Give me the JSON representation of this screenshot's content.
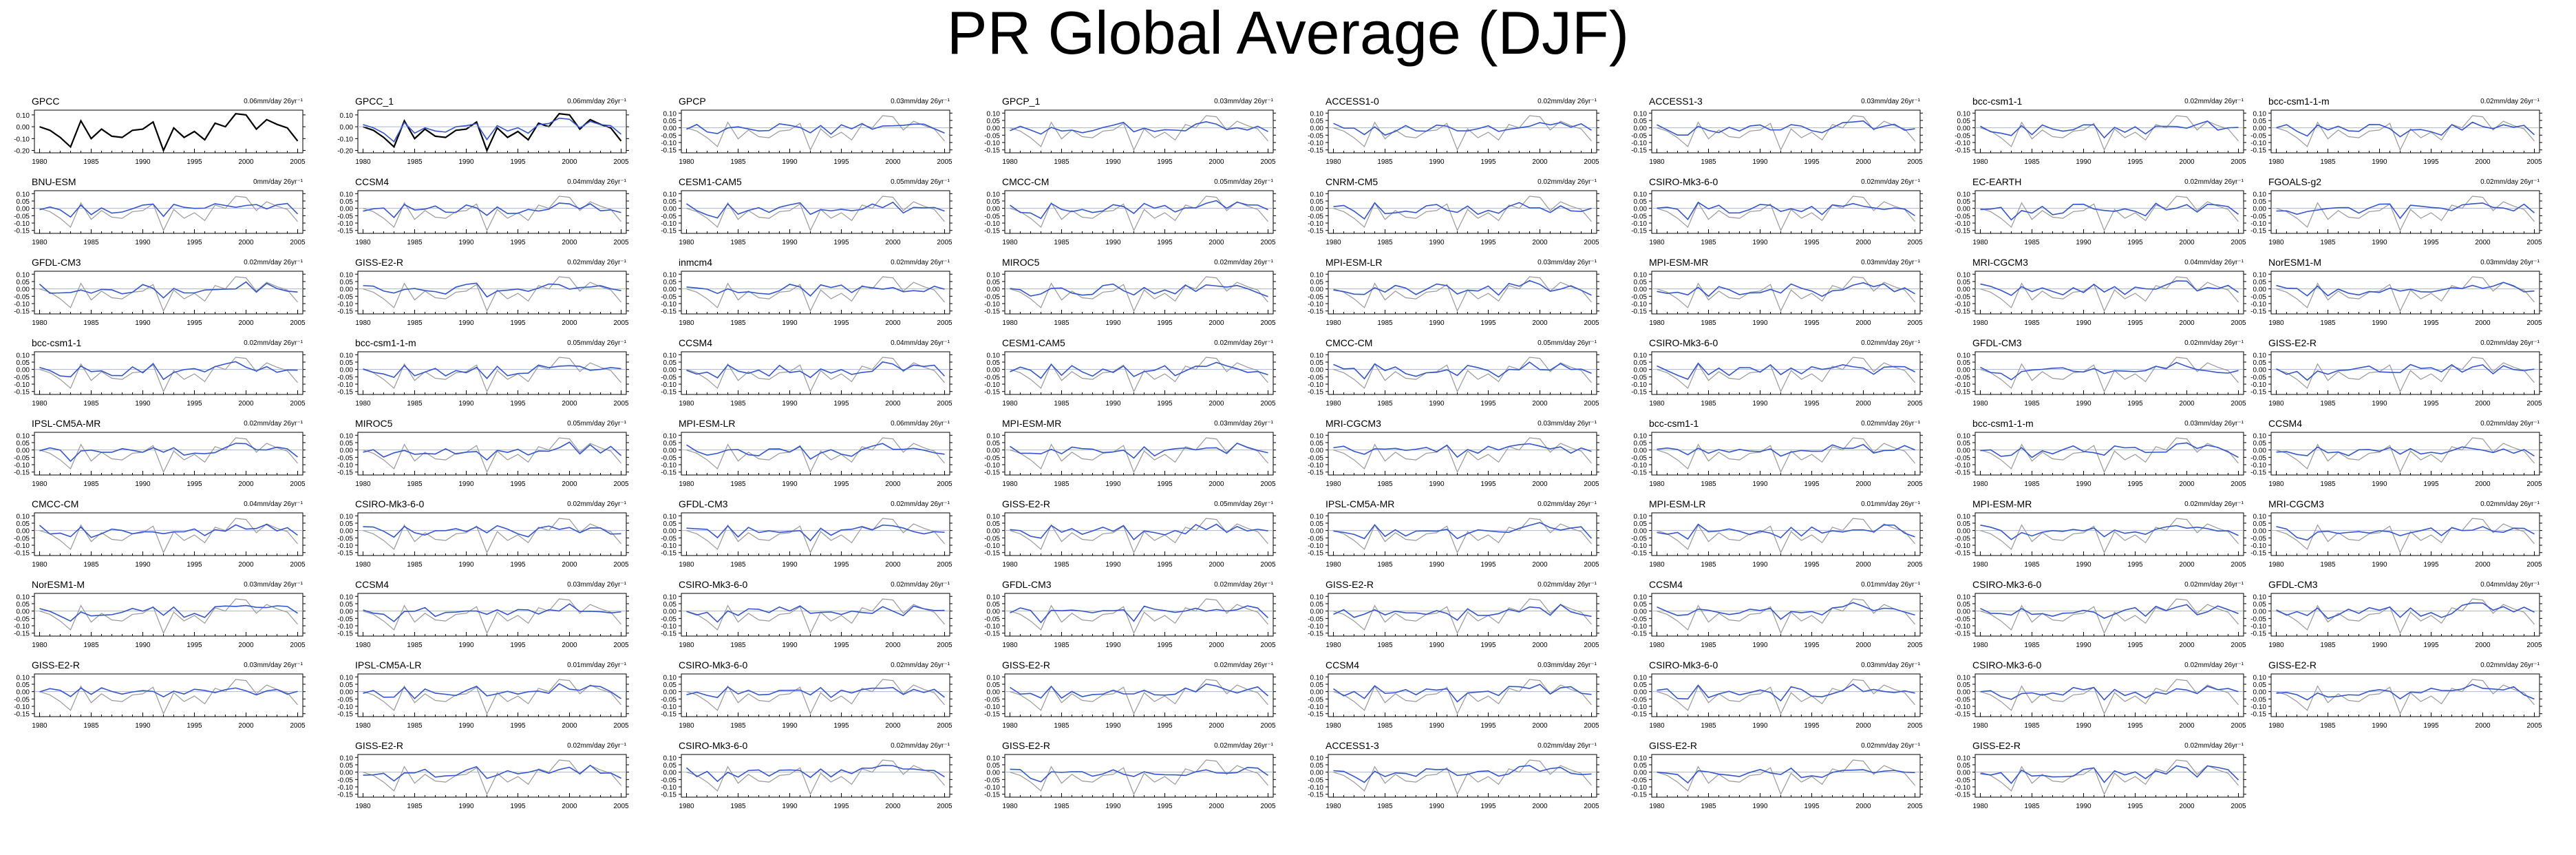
{
  "title": "PR Global Average (DJF)",
  "colors": {
    "obs": "#000000",
    "model": "#999999",
    "trend": "#3355cc",
    "zero": "#aab4d6"
  },
  "chart_data": [
    {
      "type": "line",
      "title": "GPCC",
      "trend": "0.06mm/day 26yr⁻¹",
      "obs": true,
      "seed": 1
    },
    {
      "type": "line",
      "title": "GPCC_1",
      "trend": "0.06mm/day 26yr⁻¹",
      "obs": true,
      "seed": 1
    },
    {
      "type": "line",
      "title": "GPCP",
      "trend": "0.03mm/day 26yr⁻¹",
      "seed": 3
    },
    {
      "type": "line",
      "title": "GPCP_1",
      "trend": "0.03mm/day 26yr⁻¹",
      "seed": 4
    },
    {
      "type": "line",
      "title": "ACCESS1-0",
      "trend": "0.02mm/day 26yr⁻¹",
      "seed": 5
    },
    {
      "type": "line",
      "title": "ACCESS1-3",
      "trend": "0.03mm/day 26yr⁻¹",
      "seed": 6
    },
    {
      "type": "line",
      "title": "bcc-csm1-1",
      "trend": "0.02mm/day 26yr⁻¹",
      "seed": 7
    },
    {
      "type": "line",
      "title": "bcc-csm1-1-m",
      "trend": "0.02mm/day 26yr⁻¹",
      "seed": 8
    },
    {
      "type": "line",
      "title": "BNU-ESM",
      "trend": "0mm/day 26yr⁻¹",
      "seed": 9
    },
    {
      "type": "line",
      "title": "CCSM4",
      "trend": "0.04mm/day 26yr⁻¹",
      "seed": 10
    },
    {
      "type": "line",
      "title": "CESM1-CAM5",
      "trend": "0.05mm/day 26yr⁻¹",
      "seed": 11
    },
    {
      "type": "line",
      "title": "CMCC-CM",
      "trend": "0.05mm/day 26yr⁻¹",
      "seed": 12
    },
    {
      "type": "line",
      "title": "CNRM-CM5",
      "trend": "0.02mm/day 26yr⁻¹",
      "seed": 13
    },
    {
      "type": "line",
      "title": "CSIRO-Mk3-6-0",
      "trend": "0.02mm/day 26yr⁻¹",
      "seed": 14
    },
    {
      "type": "line",
      "title": "EC-EARTH",
      "trend": "0.02mm/day 26yr⁻¹",
      "seed": 15
    },
    {
      "type": "line",
      "title": "FGOALS-g2",
      "trend": "0.02mm/day 26yr⁻¹",
      "seed": 16
    },
    {
      "type": "line",
      "title": "GFDL-CM3",
      "trend": "0.02mm/day 26yr⁻¹",
      "seed": 17
    },
    {
      "type": "line",
      "title": "GISS-E2-R",
      "trend": "0.02mm/day 26yr⁻¹",
      "seed": 18
    },
    {
      "type": "line",
      "title": "inmcm4",
      "trend": "0.02mm/day 26yr⁻¹",
      "seed": 19
    },
    {
      "type": "line",
      "title": "MIROC5",
      "trend": "0.02mm/day 26yr⁻¹",
      "seed": 20
    },
    {
      "type": "line",
      "title": "MPI-ESM-LR",
      "trend": "0.03mm/day 26yr⁻¹",
      "seed": 21
    },
    {
      "type": "line",
      "title": "MPI-ESM-MR",
      "trend": "0.03mm/day 26yr⁻¹",
      "seed": 22
    },
    {
      "type": "line",
      "title": "MRI-CGCM3",
      "trend": "0.04mm/day 26yr⁻¹",
      "seed": 23
    },
    {
      "type": "line",
      "title": "NorESM1-M",
      "trend": "0.03mm/day 26yr⁻¹",
      "seed": 24
    },
    {
      "type": "line",
      "title": "bcc-csm1-1",
      "trend": "0.02mm/day 26yr⁻¹",
      "seed": 25
    },
    {
      "type": "line",
      "title": "bcc-csm1-1-m",
      "trend": "0.05mm/day 26yr⁻¹",
      "seed": 26
    },
    {
      "type": "line",
      "title": "CCSM4",
      "trend": "0.04mm/day 26yr⁻¹",
      "seed": 27
    },
    {
      "type": "line",
      "title": "CESM1-CAM5",
      "trend": "0.02mm/day 26yr⁻¹",
      "seed": 28
    },
    {
      "type": "line",
      "title": "CMCC-CM",
      "trend": "0.05mm/day 26yr⁻¹",
      "seed": 29
    },
    {
      "type": "line",
      "title": "CSIRO-Mk3-6-0",
      "trend": "0.02mm/day 26yr⁻¹",
      "seed": 30
    },
    {
      "type": "line",
      "title": "GFDL-CM3",
      "trend": "0.02mm/day 26yr⁻¹",
      "seed": 31
    },
    {
      "type": "line",
      "title": "GISS-E2-R",
      "trend": "0.02mm/day 26yr⁻¹",
      "seed": 32
    },
    {
      "type": "line",
      "title": "IPSL-CM5A-MR",
      "trend": "0.02mm/day 26yr⁻¹",
      "seed": 33
    },
    {
      "type": "line",
      "title": "MIROC5",
      "trend": "0.05mm/day 26yr⁻¹",
      "seed": 34
    },
    {
      "type": "line",
      "title": "MPI-ESM-LR",
      "trend": "0.06mm/day 26yr⁻¹",
      "seed": 35
    },
    {
      "type": "line",
      "title": "MPI-ESM-MR",
      "trend": "0.03mm/day 26yr⁻¹",
      "seed": 36
    },
    {
      "type": "line",
      "title": "MRI-CGCM3",
      "trend": "0.03mm/day 26yr⁻¹",
      "seed": 37
    },
    {
      "type": "line",
      "title": "bcc-csm1-1",
      "trend": "0.02mm/day 26yr⁻¹",
      "seed": 38
    },
    {
      "type": "line",
      "title": "bcc-csm1-1-m",
      "trend": "0.03mm/day 26yr⁻¹",
      "seed": 39
    },
    {
      "type": "line",
      "title": "CCSM4",
      "trend": "0.02mm/day 26yr⁻¹",
      "seed": 40
    },
    {
      "type": "line",
      "title": "CMCC-CM",
      "trend": "0.04mm/day 26yr⁻¹",
      "seed": 41
    },
    {
      "type": "line",
      "title": "CSIRO-Mk3-6-0",
      "trend": "0.02mm/day 26yr⁻¹",
      "seed": 42
    },
    {
      "type": "line",
      "title": "GFDL-CM3",
      "trend": "0.02mm/day 26yr⁻¹",
      "seed": 43
    },
    {
      "type": "line",
      "title": "GISS-E2-R",
      "trend": "0.05mm/day 26yr⁻¹",
      "seed": 44
    },
    {
      "type": "line",
      "title": "IPSL-CM5A-MR",
      "trend": "0.02mm/day 26yr⁻¹",
      "seed": 45
    },
    {
      "type": "line",
      "title": "MPI-ESM-LR",
      "trend": "0.01mm/day 26yr⁻¹",
      "seed": 46
    },
    {
      "type": "line",
      "title": "MPI-ESM-MR",
      "trend": "0.02mm/day 26yr⁻¹",
      "seed": 47
    },
    {
      "type": "line",
      "title": "MRI-CGCM3",
      "trend": "0.02mm/day 26yr⁻¹",
      "seed": 48
    },
    {
      "type": "line",
      "title": "NorESM1-M",
      "trend": "0.03mm/day 26yr⁻¹",
      "seed": 49
    },
    {
      "type": "line",
      "title": "CCSM4",
      "trend": "0.03mm/day 26yr⁻¹",
      "seed": 50
    },
    {
      "type": "line",
      "title": "CSIRO-Mk3-6-0",
      "trend": "0.02mm/day 26yr⁻¹",
      "seed": 51
    },
    {
      "type": "line",
      "title": "GFDL-CM3",
      "trend": "0.02mm/day 26yr⁻¹",
      "seed": 52
    },
    {
      "type": "line",
      "title": "GISS-E2-R",
      "trend": "0.02mm/day 26yr⁻¹",
      "seed": 53
    },
    {
      "type": "line",
      "title": "CCSM4",
      "trend": "0.01mm/day 26yr⁻¹",
      "seed": 54
    },
    {
      "type": "line",
      "title": "CSIRO-Mk3-6-0",
      "trend": "0.02mm/day 26yr⁻¹",
      "seed": 55
    },
    {
      "type": "line",
      "title": "GFDL-CM3",
      "trend": "0.04mm/day 26yr⁻¹",
      "seed": 56
    },
    {
      "type": "line",
      "title": "GISS-E2-R",
      "trend": "0.03mm/day 26yr⁻¹",
      "seed": 57
    },
    {
      "type": "line",
      "title": "IPSL-CM5A-LR",
      "trend": "0.01mm/day 26yr⁻¹",
      "seed": 58
    },
    {
      "type": "line",
      "title": "CSIRO-Mk3-6-0",
      "trend": "0.02mm/day 26yr⁻¹",
      "seed": 59
    },
    {
      "type": "line",
      "title": "GISS-E2-R",
      "trend": "0.02mm/day 26yr⁻¹",
      "seed": 60
    },
    {
      "type": "line",
      "title": "CCSM4",
      "trend": "0.03mm/day 26yr⁻¹",
      "seed": 61
    },
    {
      "type": "line",
      "title": "CSIRO-Mk3-6-0",
      "trend": "0.03mm/day 26yr⁻¹",
      "seed": 62
    },
    {
      "type": "line",
      "title": "CSIRO-Mk3-6-0",
      "trend": "0.02mm/day 26yr⁻¹",
      "seed": 63
    },
    {
      "type": "line",
      "title": "GISS-E2-R",
      "trend": "0.02mm/day 26yr⁻¹",
      "seed": 64
    },
    {
      "type": "line",
      "title": "GISS-E2-R",
      "trend": "0.02mm/day 26yr⁻¹",
      "seed": 65
    },
    {
      "type": "line",
      "title": "CSIRO-Mk3-6-0",
      "trend": "0.02mm/day 26yr⁻¹",
      "seed": 66
    },
    {
      "type": "line",
      "title": "GISS-E2-R",
      "trend": "0.02mm/day 26yr⁻¹",
      "seed": 67
    },
    {
      "type": "line",
      "title": "ACCESS1-3",
      "trend": "0.02mm/day 26yr⁻¹",
      "seed": 68
    },
    {
      "type": "line",
      "title": "GISS-E2-R",
      "trend": "0.02mm/day 26yr⁻¹",
      "seed": 69
    },
    {
      "type": "line",
      "title": "GISS-E2-R",
      "trend": "0.02mm/day 26yr⁻¹",
      "seed": 70
    }
  ],
  "x_ticks": [
    1980,
    1985,
    1990,
    1995,
    2000,
    2005
  ],
  "y_ticks": [
    "0.10",
    "0.05",
    "0.00",
    "-0.05",
    "-0.10",
    "-0.15"
  ],
  "y_ticks_obs": [
    "0.10",
    "0.00",
    "-0.10",
    "-0.20"
  ],
  "obs_series": {
    "x": [
      1980,
      1981,
      1982,
      1983,
      1984,
      1985,
      1986,
      1987,
      1988,
      1989,
      1990,
      1991,
      1992,
      1993,
      1994,
      1995,
      1996,
      1997,
      1998,
      1999,
      2000,
      2001,
      2002,
      2003,
      2004,
      2005
    ],
    "y": [
      0.0,
      -0.03,
      -0.09,
      -0.17,
      0.05,
      -0.1,
      -0.02,
      -0.08,
      -0.09,
      -0.03,
      -0.02,
      0.04,
      -0.2,
      -0.01,
      -0.09,
      -0.04,
      -0.11,
      0.03,
      0.0,
      0.11,
      0.1,
      -0.02,
      0.06,
      0.02,
      -0.01,
      -0.12
    ]
  },
  "model_series": {
    "x": [
      1980,
      1981,
      1982,
      1983,
      1984,
      1985,
      1986,
      1987,
      1988,
      1989,
      1990,
      1991,
      1992,
      1993,
      1994,
      1995,
      1996,
      1997,
      1998,
      1999,
      2000,
      2001,
      2002,
      2003,
      2004,
      2005
    ],
    "y": [
      0.02,
      -0.01,
      -0.06,
      -0.14,
      0.04,
      -0.06,
      -0.01,
      -0.04,
      -0.05,
      0.0,
      0.01,
      0.03,
      -0.12,
      0.01,
      -0.04,
      -0.01,
      -0.06,
      0.02,
      0.03,
      0.08,
      0.07,
      -0.01,
      0.05,
      0.02,
      0.01,
      -0.07
    ]
  }
}
